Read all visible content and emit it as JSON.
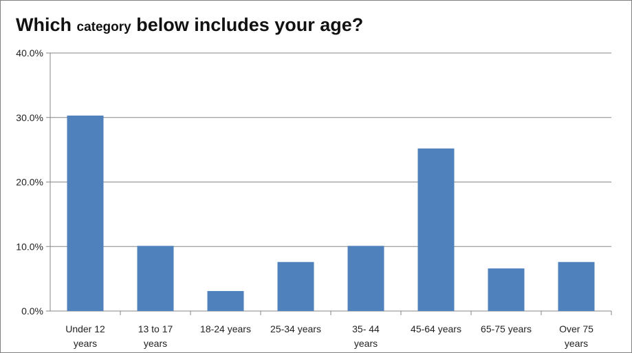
{
  "chart_data": {
    "type": "bar",
    "title_parts": [
      "Which",
      "category",
      "below includes your age?"
    ],
    "categories": [
      [
        "Under 12",
        "years"
      ],
      [
        "13 to 17",
        "years"
      ],
      [
        "18-24 years"
      ],
      [
        "25-34 years"
      ],
      [
        "35- 44",
        "years"
      ],
      [
        "45-64 years"
      ],
      [
        "65-75 years"
      ],
      [
        "Over 75",
        "years"
      ]
    ],
    "values": [
      30.3,
      10.1,
      3.1,
      7.6,
      10.1,
      25.2,
      6.6,
      7.6
    ],
    "y_ticks": [
      "0.0%",
      "10.0%",
      "20.0%",
      "30.0%",
      "40.0%"
    ],
    "ylim": [
      0,
      40
    ],
    "grid": true,
    "bar_color": "#4f81bd",
    "grid_color": "#868686"
  }
}
